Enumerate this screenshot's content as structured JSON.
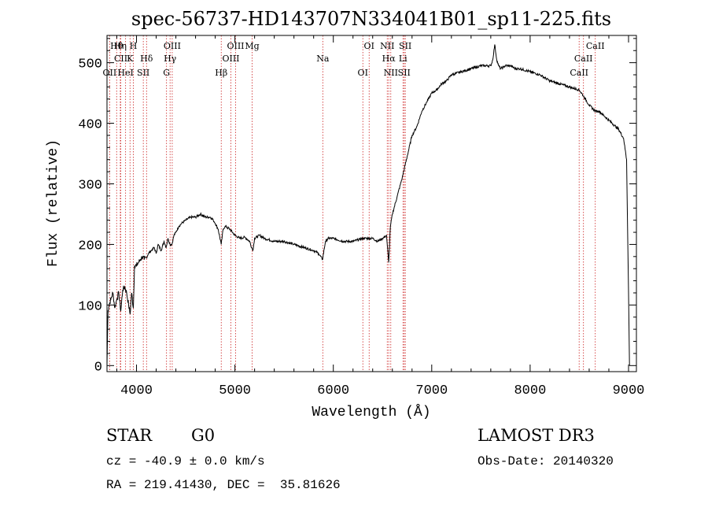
{
  "chart_data": {
    "type": "line",
    "title": "spec-56737-HD143707N334041B01_sp11-225.fits",
    "xlabel": "Wavelength (Å)",
    "ylabel": "Flux (relative)",
    "xlim": [
      3700,
      9080
    ],
    "ylim": [
      -10,
      545
    ],
    "x_ticks": [
      4000,
      5000,
      6000,
      7000,
      8000,
      9000
    ],
    "y_ticks": [
      0,
      100,
      200,
      300,
      400,
      500
    ],
    "grid": false,
    "series": [
      {
        "x": [
          3700,
          3710,
          3720,
          3740,
          3760,
          3780,
          3800,
          3820,
          3840,
          3860,
          3880,
          3900,
          3920,
          3935,
          3950,
          3968,
          3980,
          4000,
          4020,
          4040,
          4060,
          4080,
          4102,
          4120,
          4150,
          4180,
          4200,
          4220,
          4250,
          4280,
          4300,
          4320,
          4340,
          4360,
          4380,
          4400,
          4430,
          4460,
          4500,
          4550,
          4600,
          4650,
          4700,
          4750,
          4780,
          4800,
          4830,
          4861,
          4880,
          4900,
          4950,
          5000,
          5050,
          5100,
          5150,
          5170,
          5183,
          5200,
          5250,
          5300,
          5400,
          5500,
          5600,
          5700,
          5800,
          5850,
          5890,
          5920,
          5950,
          6000,
          6100,
          6200,
          6300,
          6400,
          6450,
          6500,
          6540,
          6563,
          6580,
          6600,
          6650,
          6700,
          6750,
          6800,
          6850,
          6900,
          6950,
          7000,
          7050,
          7100,
          7150,
          7200,
          7300,
          7400,
          7500,
          7600,
          7620,
          7640,
          7660,
          7680,
          7700,
          7750,
          7800,
          7850,
          7900,
          8000,
          8100,
          8200,
          8300,
          8400,
          8500,
          8542,
          8560,
          8600,
          8662,
          8700,
          8800,
          8900,
          8950,
          8980,
          9000,
          9010
        ],
        "y": [
          0,
          90,
          100,
          110,
          120,
          95,
          110,
          120,
          90,
          125,
          130,
          120,
          100,
          85,
          120,
          95,
          165,
          165,
          170,
          175,
          180,
          175,
          178,
          185,
          190,
          195,
          185,
          200,
          190,
          205,
          195,
          210,
          200,
          200,
          215,
          220,
          230,
          235,
          240,
          245,
          245,
          250,
          245,
          245,
          240,
          235,
          225,
          200,
          225,
          230,
          225,
          215,
          210,
          212,
          205,
          195,
          190,
          210,
          215,
          210,
          205,
          205,
          200,
          195,
          190,
          185,
          175,
          205,
          210,
          210,
          205,
          205,
          210,
          210,
          205,
          210,
          215,
          170,
          230,
          250,
          280,
          310,
          345,
          380,
          395,
          420,
          435,
          450,
          455,
          465,
          470,
          480,
          485,
          490,
          495,
          495,
          505,
          530,
          505,
          495,
          490,
          495,
          495,
          490,
          490,
          485,
          480,
          470,
          465,
          460,
          455,
          445,
          440,
          430,
          420,
          420,
          405,
          390,
          375,
          340,
          120,
          0
        ]
      }
    ],
    "annotations": [
      {
        "label": "Hθ",
        "x": 3798
      },
      {
        "label": "CII",
        "x": 3840
      },
      {
        "label": "OII",
        "x": 3727
      },
      {
        "label": "Hη",
        "x": 3835
      },
      {
        "label": "K",
        "x": 3934
      },
      {
        "label": "HeI",
        "x": 3889
      },
      {
        "label": "H",
        "x": 3968
      },
      {
        "label": "Hδ",
        "x": 4102
      },
      {
        "label": "SII",
        "x": 4069
      },
      {
        "label": "OIII",
        "x": 4363
      },
      {
        "label": "Hγ",
        "x": 4341
      },
      {
        "label": "G",
        "x": 4305
      },
      {
        "label": "OIII",
        "x": 5007
      },
      {
        "label": "OIII",
        "x": 4959
      },
      {
        "label": "Hβ",
        "x": 4861
      },
      {
        "label": "Mg",
        "x": 5175
      },
      {
        "label": "Na",
        "x": 5893
      },
      {
        "label": "OI",
        "x": 6300
      },
      {
        "label": "OI",
        "x": 6364
      },
      {
        "label": "Hα",
        "x": 6563
      },
      {
        "label": "SII",
        "x": 6720
      },
      {
        "label": "NII",
        "x": 6548
      },
      {
        "label": "Li",
        "x": 6708
      },
      {
        "label": "NII",
        "x": 6584
      },
      {
        "label": "SII",
        "x": 6731
      },
      {
        "label": "CaII",
        "x": 8542
      },
      {
        "label": "CaII",
        "x": 8498
      },
      {
        "label": "CaII",
        "x": 8662
      }
    ]
  },
  "info": {
    "class": "STAR",
    "subclass": "G0",
    "survey": "LAMOST DR3",
    "cz": "cz = -40.9 ± 0.0 km/s",
    "obs_date": "Obs-Date: 20140320",
    "radec": "RA = 219.41430, DEC =  35.81626"
  },
  "colors": {
    "line": "#000000",
    "marker": "#cc2222",
    "frame": "#000000",
    "background": "#ffffff"
  }
}
